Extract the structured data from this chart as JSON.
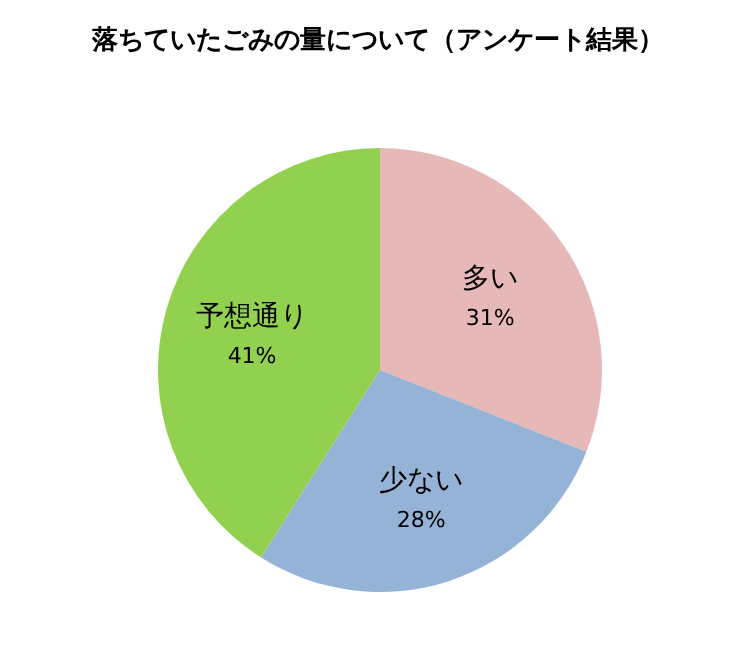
{
  "chart_data": {
    "type": "pie",
    "title": "落ちていたごみの量について（アンケート結果）",
    "categories": [
      "多い",
      "少ない",
      "予想通り"
    ],
    "values": [
      31,
      28,
      41
    ],
    "value_labels": [
      "31%",
      "28%",
      "41%"
    ],
    "colors": [
      "#e6b9b8",
      "#95b3d7",
      "#92d050"
    ]
  }
}
